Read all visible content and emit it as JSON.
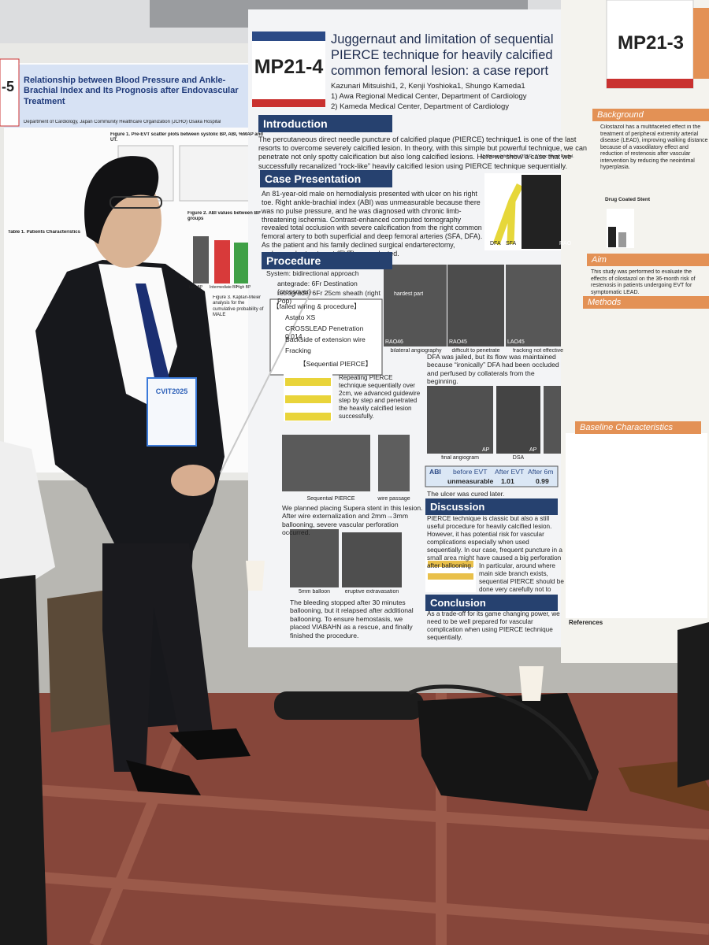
{
  "center_poster": {
    "id": "MP21-4",
    "title": "Juggernaut and limitation of sequential PIERCE technique for heavily calcified common femoral lesion: a case report",
    "authors": "Kazunari Mitsuishi1, 2, Kenji Yoshioka1, Shungo Kameda1",
    "affiliations": [
      "1) Awa Regional Medical Center, Department of Cardiology",
      "2) Kameda Medical Center, Department of Cardiology"
    ],
    "introduction": {
      "heading": "Introduction",
      "text": "The percutaneous direct needle puncture of calcified plaque (PIERCE) technique1 is one of the last resorts to overcome severely calcified lesion. In theory, with this simple but powerful technique, we can penetrate not only spotty calcification but also long calcified lesions. Here we show a case that we successfully recanalized “rock-like” heavily calcified lesion using PIERCE technique sequentially.",
      "reference": "1) Shigeo Ichihashi. (2016). J Vasc Interv Radiol."
    },
    "case": {
      "heading": "Case Presentation",
      "text": "An 81-year-old male on hemodialysis presented with ulcer on his right toe. Right ankle-brachial index (ABI) was unmeasurable because there was no pulse pressure, and he was diagnosed with chronic limb-threatening ischemia. Contrast-enhanced computed tomography revealed total occlusion with severe calcification from the right common femoral artery to both superficial and deep femoral arteries (SFA, DFA). As the patient and his family declined surgical endarterectomy, endovascular treatment (EVT) was selected.",
      "figure_labels": [
        "DFA",
        "SFA",
        "RAO"
      ]
    },
    "procedure": {
      "heading": "Procedure",
      "system": [
        "System: bidirectional approach",
        "antegrade: 6Fr Destination (crossover)",
        "retrograde: 6Fr 25cm sheath (right Pop)"
      ],
      "failed_title": "【failed wiring & procedure】",
      "failed_items": [
        "Astato XS",
        "CROSSLEAD Penetration 0.014",
        "Backside of extension wire",
        "Fracking"
      ],
      "angio_captions": [
        "RAO46",
        "bilateral angiography",
        "RAO45",
        "difficult to penetrate",
        "LAO45",
        "fracking not effective",
        "hardest part"
      ],
      "pierce_title": "【Sequential PIERCE】",
      "pierce_text": "Repeating PIERCE technique sequentially over 2cm, we advanced guidewire step by step and penetrated the heavily calcified lesion successfully.",
      "pierce_captions": [
        "Sequential PIERCE",
        "wire passage"
      ],
      "planned_text": "We planned placing Supera stent in this lesion. After wire externalization and 2mm→3mm ballooning, severe vascular perforation occurred.",
      "balloon_captions": [
        "5mm balloon",
        "eruptive extravasation"
      ],
      "bleeding_text": "The bleeding stopped after 30 minutes ballooning, but it relapsed after additional ballooning. To ensure hemostasis, we placed VIABAHN as a rescue, and finally finished the procedure.",
      "dfa_text": "DFA was jailed, but its flow was maintained because “ironically” DFA had been occluded and perfused by collaterals from the beginning.",
      "final_captions": [
        "final angiogram",
        "AP",
        "DSA",
        "AP"
      ],
      "abi_table": {
        "header": [
          "ABI",
          "before EVT",
          "After EVT",
          "After 6m"
        ],
        "row": [
          "unmeasurable",
          "1.01",
          "0.99"
        ]
      },
      "ulcer_text": "The ulcer was cured later."
    },
    "discussion": {
      "heading": "Discussion",
      "text": "PIERCE technique is classic but also a still useful procedure for heavily calcified lesion. However, it has potential risk for vascular complications especially when used sequentially. In our case, frequent puncture in a small area might have caused a big perforation after ballooning.",
      "note": "In particular, around where main side branch exists, sequential PIERCE should be done very carefully not to lose it in the end."
    },
    "conclusion": {
      "heading": "Conclusion",
      "text": "As a trade-off for its game changing power, we need to be well prepared for vascular complication when using PIERCE technique sequentially."
    }
  },
  "left_poster": {
    "id": "-5",
    "title": "Relationship between Blood Pressure and Ankle-Brachial Index and Its Prognosis after Endovascular Treatment",
    "affiliation": "Department of Cardiology, Japan Community Healthcare Organization (JCHO) Osaka Hospital",
    "figure_titles": [
      "Figure 1. Pre-EVT scatter plots between systolic BP, ABI, %MAP and UT.",
      "Figure 2. ABI values between BP groups",
      "Figure 3. Kaplan-Meier analysis for the cumulative probability of MALE"
    ],
    "bar_labels": [
      "Low BP",
      "Intermediate BP",
      "High BP"
    ],
    "table_title": "Table 1. Patients Characteristics"
  },
  "right_poster": {
    "id": "MP21-3",
    "sections": [
      "Background",
      "Aim",
      "Methods",
      "Baseline Characteristics",
      "References"
    ],
    "background_text": "Cilostazol has a multifaceted effect in the treatment of peripheral extremity arterial disease (LEAD), improving walking distance because of a vasodilatory effect and reduction of restenosis after vascular intervention by reducing the neointimal hyperplasia.",
    "aim_text": "This study was performed to evaluate the effects of cilostazol on the 36-month risk of restenosis in patients undergoing EVT for symptomatic LEAD.",
    "chart_label": "Drug Coated Stent"
  },
  "badge": "CVIT2025"
}
